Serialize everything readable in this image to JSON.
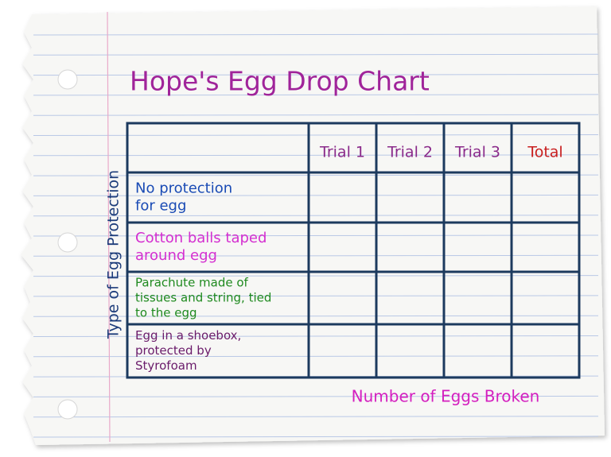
{
  "title": "Hope's Egg Drop Chart",
  "table": {
    "header": [
      "Trial 1",
      "Trial 2",
      "Trial 3",
      "Total"
    ],
    "rows": [
      {
        "label": [
          "No protection",
          "for egg"
        ]
      },
      {
        "label": [
          "Cotton balls taped",
          "around egg"
        ]
      },
      {
        "label": [
          "Parachute made of",
          "tissues and string, tied",
          "to the egg"
        ]
      },
      {
        "label": [
          "Egg in a shoebox,",
          "protected by",
          "Styrofoam"
        ]
      }
    ]
  },
  "row_axis_label": "Type of Egg Protection",
  "column_axis_label": "Number of Eggs Broken"
}
